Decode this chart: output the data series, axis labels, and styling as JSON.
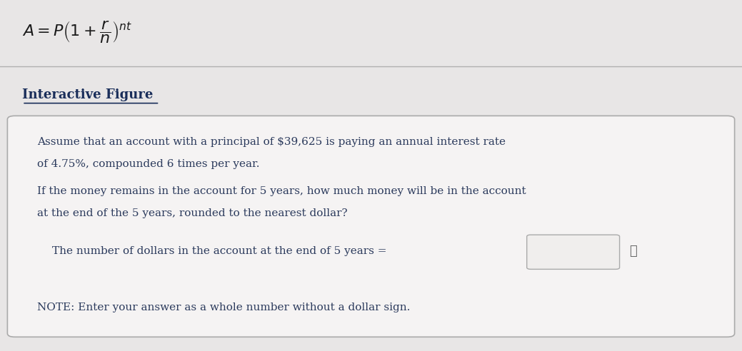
{
  "bg_color": "#d4d4d4",
  "inner_bg_color": "#e8e6e6",
  "box_bg_color": "#f5f3f3",
  "formula_text": "$A = P\\left(1+\\dfrac{r}{n}\\right)^{nt}$",
  "heading": "Interactive Figure",
  "para1_line1": "Assume that an account with a principal of $39,625 is paying an annual interest rate",
  "para1_line2": "of 4.75%, compounded 6 times per year.",
  "para2_line1": "If the money remains in the account for 5 years, how much money will be in the account",
  "para2_line2": "at the end of the 5 years, rounded to the nearest dollar?",
  "answer_label": "The number of dollars in the account at the end of 5 years =",
  "note_text": "NOTE: Enter your answer as a whole number without a dollar sign.",
  "text_color": "#2b3a5c",
  "heading_color": "#1a2e5a",
  "formula_color": "#1a1a1a",
  "box_border_color": "#aaaaaa",
  "top_border_color": "#b0b0b0",
  "input_box_color": "#f0eeed"
}
